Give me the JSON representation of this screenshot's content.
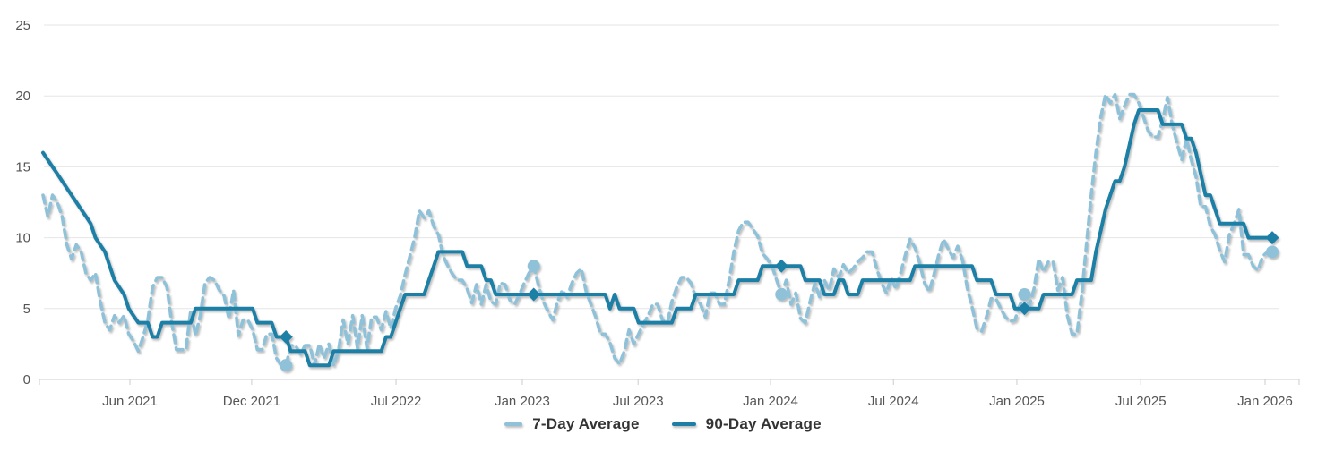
{
  "chart_data": {
    "type": "line",
    "title": "",
    "y_axis": {
      "ticks": [
        0,
        5,
        10,
        15,
        20,
        25
      ],
      "range": [
        0,
        25
      ],
      "grid": true
    },
    "x_axis": {
      "ticks": [
        {
          "label": "Jun 2021",
          "week": 18.24
        },
        {
          "label": "Dec 2021",
          "week": 43.8
        },
        {
          "label": "Jul 2022",
          "week": 74.1
        },
        {
          "label": "Jan 2023",
          "week": 100.6
        },
        {
          "label": "Jul 2023",
          "week": 124.9
        },
        {
          "label": "Jan 2024",
          "week": 152.7
        },
        {
          "label": "Jul 2024",
          "week": 178.5
        },
        {
          "label": "Jan 2025",
          "week": 204.4
        },
        {
          "label": "Jul 2025",
          "week": 230.4
        },
        {
          "label": "Jan 2026",
          "week": 256.5
        }
      ]
    },
    "legend": {
      "position": "bottom",
      "items": [
        "7-Day Average",
        "90-Day Average"
      ]
    },
    "series": [
      {
        "name": "7-Day Average",
        "style": "dashed",
        "color": "#8fc2d9",
        "marker": "circle",
        "values": [
          13,
          11.5,
          13,
          12.5,
          11.5,
          9.5,
          8.5,
          9.5,
          9,
          7.5,
          7,
          7.5,
          5.5,
          4,
          3.5,
          4.5,
          4,
          4.5,
          3.2,
          2.7,
          2,
          3,
          4.2,
          6.5,
          7.2,
          7.2,
          6.5,
          4,
          2.1,
          2.1,
          2.1,
          4.9,
          3.1,
          4.5,
          6.8,
          7.2,
          7,
          6.3,
          5.9,
          4.3,
          6.3,
          3.1,
          4.2,
          4.2,
          3.5,
          2.1,
          2.1,
          3.2,
          3.2,
          1.5,
          1,
          1,
          2.4,
          2.4,
          1.8,
          2.4,
          2.4,
          1,
          2.5,
          1.5,
          2.5,
          1,
          2,
          4.2,
          2.5,
          4.5,
          2.2,
          4.5,
          2.2,
          4.4,
          4.4,
          3.5,
          4.8,
          3.6,
          5,
          5.9,
          7.4,
          8.7,
          10,
          11.9,
          11.4,
          11.9,
          10.8,
          10.2,
          8.7,
          8,
          7.4,
          7,
          7,
          6.4,
          5.4,
          6.7,
          5.3,
          6.7,
          5.5,
          5.3,
          6.8,
          6.7,
          5.6,
          5.3,
          6,
          6.8,
          7.5,
          8,
          6.6,
          5.5,
          4.8,
          4.2,
          5.5,
          6.3,
          5.8,
          6.8,
          7.5,
          7.8,
          6.2,
          5.3,
          4.4,
          3.2,
          3.2,
          2.6,
          1.5,
          1.1,
          2,
          3.5,
          2.5,
          3.2,
          3.9,
          4.5,
          5.3,
          5.3,
          4.2,
          3.9,
          5.5,
          6.5,
          7.2,
          7.2,
          6.8,
          5.8,
          5.3,
          4.4,
          6.1,
          6.1,
          5.3,
          5.3,
          7,
          9,
          10.5,
          11.1,
          11.1,
          10.6,
          10.1,
          8.9,
          8.5,
          8,
          7,
          6,
          7,
          5.3,
          6.1,
          4.3,
          4,
          5.5,
          6.8,
          5.8,
          7,
          6.3,
          7.8,
          7.2,
          8.1,
          7.5,
          7.8,
          8.3,
          8.6,
          9,
          9,
          7.8,
          6.8,
          6.1,
          7.2,
          6.4,
          7.5,
          8.8,
          9.9,
          9.3,
          8.2,
          6.8,
          6.2,
          7.4,
          8.8,
          9.9,
          9.2,
          8.6,
          9.4,
          8.4,
          6.4,
          5.1,
          3.6,
          3.4,
          4.4,
          5.7,
          5.7,
          5,
          4.4,
          4.1,
          4.2,
          5.2,
          6,
          5.2,
          6.4,
          8.5,
          7.6,
          8.3,
          8.3,
          6.3,
          7.2,
          4.5,
          3.2,
          3.2,
          6,
          9.5,
          13,
          16,
          18.5,
          20.1,
          19.5,
          20.1,
          18.4,
          19.3,
          20.1,
          20.1,
          19.5,
          18.5,
          17.5,
          17.1,
          17.1,
          18.3,
          19.9,
          18,
          16.7,
          15.5,
          17,
          15.5,
          14.3,
          12.2,
          12.2,
          10.8,
          10.2,
          9.1,
          8.3,
          10.2,
          11,
          12,
          8.8,
          8.8,
          8,
          7.7,
          8.7,
          9,
          9
        ]
      },
      {
        "name": "90-Day Average",
        "style": "solid",
        "color": "#1e7fa6",
        "marker": "diamond",
        "values": [
          16,
          15.5,
          15,
          14.5,
          14,
          13.5,
          13,
          12.5,
          12,
          11.5,
          11,
          10,
          9.5,
          9,
          8,
          7,
          6.5,
          6,
          5,
          4.5,
          4,
          4,
          4,
          3,
          3,
          4,
          4,
          4,
          4,
          4,
          4,
          4,
          5,
          5,
          5,
          5,
          5,
          5,
          5,
          5,
          5,
          5,
          5,
          5,
          5,
          4,
          4,
          4,
          4,
          3,
          3,
          3,
          2,
          2,
          2,
          2,
          1,
          1,
          1,
          1,
          1,
          2,
          2,
          2,
          2,
          2,
          2,
          2,
          2,
          2,
          2,
          2,
          3,
          3,
          4,
          5,
          6,
          6,
          6,
          6,
          6,
          7,
          8,
          9,
          9,
          9,
          9,
          9,
          9,
          8,
          8,
          8,
          8,
          7,
          7,
          6,
          6,
          6,
          6,
          6,
          6,
          6,
          6,
          6,
          6,
          6,
          6,
          6,
          6,
          6,
          6,
          6,
          6,
          6,
          6,
          6,
          6,
          6,
          6,
          5,
          6,
          5,
          5,
          5,
          5,
          4,
          4,
          4,
          4,
          4,
          4,
          4,
          4,
          5,
          5,
          5,
          5,
          6,
          6,
          6,
          6,
          6,
          6,
          6,
          6,
          6,
          7,
          7,
          7,
          7,
          7,
          8,
          8,
          8,
          8,
          8,
          8,
          8,
          8,
          8,
          7,
          7,
          7,
          7,
          6,
          6,
          6,
          7,
          7,
          6,
          6,
          6,
          7,
          7,
          7,
          7,
          7,
          7,
          7,
          7,
          7,
          7,
          7,
          8,
          8,
          8,
          8,
          8,
          8,
          8,
          8,
          8,
          8,
          8,
          8,
          8,
          7,
          7,
          7,
          7,
          6,
          6,
          6,
          6,
          5,
          5,
          5,
          5,
          5,
          5,
          6,
          6,
          6,
          6,
          6,
          6,
          6,
          7,
          7,
          7,
          7,
          9,
          10.5,
          12,
          13,
          14,
          14,
          15,
          16.5,
          18,
          19,
          19,
          19,
          19,
          19,
          18,
          18,
          18,
          18,
          18,
          17,
          17,
          16,
          14.5,
          13,
          13,
          12,
          11,
          11,
          11,
          11,
          11,
          11,
          10,
          10,
          10,
          10,
          10,
          10
        ]
      }
    ],
    "highlight_points": [
      {
        "week": 51,
        "diamond": 3,
        "circle": 1
      },
      {
        "week": 103,
        "diamond": 6,
        "circle": 8
      },
      {
        "week": 155,
        "diamond": 8,
        "circle": 6
      },
      {
        "week": 206,
        "diamond": 5,
        "circle": 6
      },
      {
        "week": 258,
        "diamond": 10,
        "circle": 9
      }
    ],
    "colors": {
      "grid": "#e6e6e6",
      "axis": "#cccccc",
      "tick_label": "#555555",
      "legend_text": "#333333",
      "series_7day": "#8fc2d9",
      "series_90day": "#1e7fa6"
    }
  }
}
